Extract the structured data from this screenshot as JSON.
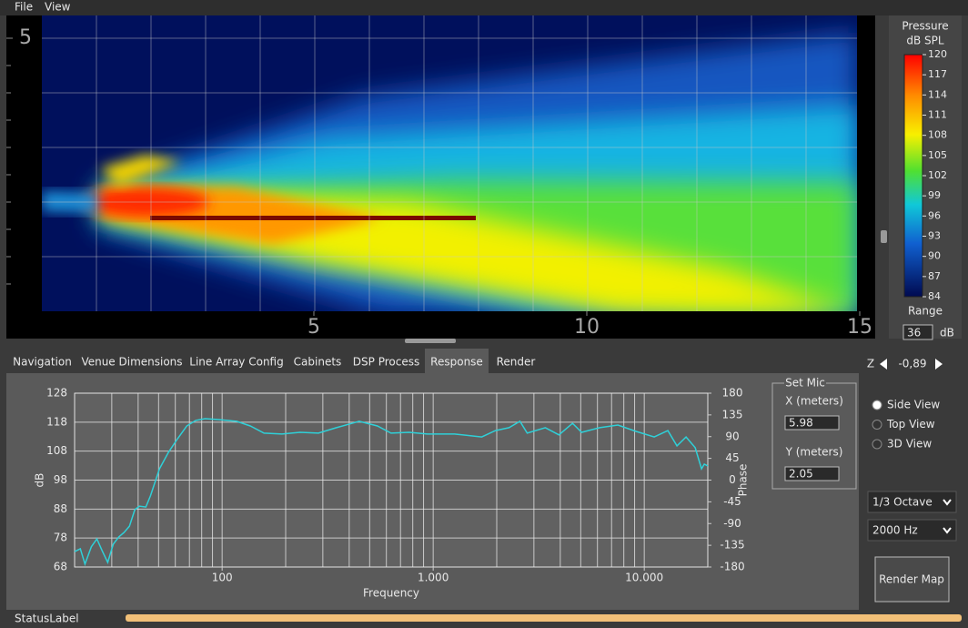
{
  "menu": [
    "File",
    "View"
  ],
  "heatmap": {
    "xlim": [
      0,
      15
    ],
    "ylim": [
      0,
      5.4
    ],
    "xticks": [
      5,
      10,
      15
    ],
    "yticks": [
      5
    ]
  },
  "colorbar": {
    "title": "Pressure",
    "unit": "dB SPL",
    "lim": [
      84,
      120
    ],
    "ticks": [
      120,
      117,
      114,
      111,
      108,
      105,
      102,
      99,
      96,
      93,
      90,
      87,
      84
    ],
    "range_label": "Range",
    "range_value": 36,
    "range_unit": "dB"
  },
  "tabs": [
    "Navigation",
    "Venue Dimensions",
    "Line Array Config",
    "Cabinets",
    "DSP Process",
    "Response",
    "Render"
  ],
  "active_tab": 5,
  "chart_data": {
    "type": "line",
    "xlabel": "Frequency",
    "ylabel": "dB",
    "y2label": "Phase",
    "log_x": true,
    "grid": true,
    "color": "#2fd0d8",
    "xlim": [
      20,
      20000
    ],
    "ylim": [
      68,
      128
    ],
    "y2lim": [
      -180,
      180
    ],
    "xticks": [
      100,
      {
        "value": 1000,
        "label": "1.000"
      },
      {
        "value": 10000,
        "label": "10.000"
      }
    ],
    "xgrid": [
      20,
      30,
      40,
      50,
      60,
      70,
      80,
      90,
      100,
      200,
      300,
      400,
      500,
      600,
      700,
      800,
      900,
      1000,
      2000,
      3000,
      4000,
      5000,
      6000,
      7000,
      8000,
      9000,
      10000,
      20000
    ],
    "yticks": [
      128,
      118,
      108,
      98,
      88,
      78,
      68
    ],
    "y2ticks": [
      180,
      135,
      90,
      45,
      0,
      -45,
      -90,
      -135,
      -180
    ],
    "x": [
      20,
      21.3,
      22.4,
      24,
      25.5,
      27,
      28.7,
      30.5,
      32.4,
      34.3,
      36.4,
      38.6,
      40.6,
      43.5,
      45.7,
      50.5,
      55.7,
      61.5,
      68,
      75,
      83,
      96,
      117,
      136,
      158,
      192,
      234,
      286,
      348,
      446,
      544,
      631,
      769,
      938,
      1262,
      1698,
      1972,
      2286,
      2576,
      2788,
      3397,
      3945,
      4571,
      5047,
      6152,
      7499,
      9146,
      11150,
      12940,
      14290,
      15780,
      17420,
      18670,
      19240,
      20000
    ],
    "values": [
      73.3,
      74.3,
      69,
      75,
      77.7,
      73.7,
      69.6,
      75.9,
      78.4,
      79.9,
      82.1,
      87.8,
      89,
      88.7,
      92.5,
      101.9,
      107.6,
      112.3,
      116.7,
      118.6,
      119.2,
      118.9,
      118.3,
      116.7,
      114.2,
      113.9,
      114.5,
      114.2,
      116.1,
      118.3,
      116.7,
      114.2,
      114.5,
      113.9,
      113.9,
      112.9,
      115.1,
      116.1,
      118.3,
      114.2,
      116.1,
      113.6,
      117.6,
      114.5,
      116.1,
      117,
      114.8,
      112.9,
      115.1,
      109.8,
      112.9,
      109.2,
      101.9,
      103.5,
      102.9
    ]
  },
  "set_mic": {
    "title": "Set Mic",
    "x_label": "X (meters)",
    "x_value": 5.98,
    "y_label": "Y (meters)",
    "y_value": 2.05
  },
  "z_control": {
    "label": "Z",
    "value": "-0,89"
  },
  "views": {
    "options": [
      "Side View",
      "Top View",
      "3D View"
    ],
    "selected": 0
  },
  "octave": "1/3 Octave",
  "frequency": "2000 Hz",
  "render_button": "Render Map",
  "status": "StatusLabel"
}
